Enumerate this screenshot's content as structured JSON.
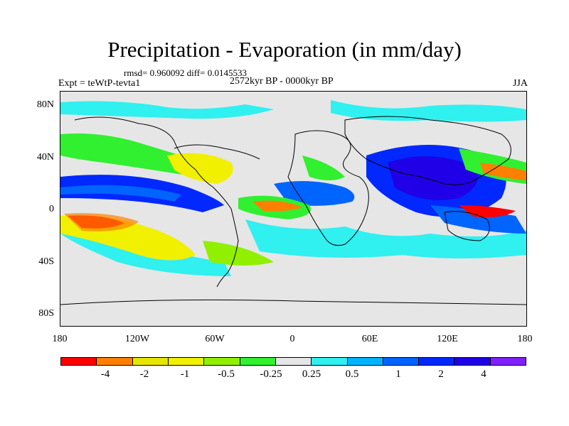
{
  "title": "Precipitation - Evaporation (in mm/day)",
  "stats": "rmsd= 0.960092 diff= 0.0145533",
  "experiment": "Expt = teWtP-tevta1",
  "period": "2572kyr BP - 0000kyr BP",
  "season": "JJA",
  "y_ticks": [
    "80N",
    "40N",
    "0",
    "40S",
    "80S"
  ],
  "x_ticks": [
    "180",
    "120W",
    "60W",
    "0",
    "60E",
    "120E",
    "180"
  ],
  "colorbar": {
    "colors": [
      "#ff0000",
      "#ff8000",
      "#e6e600",
      "#f0f000",
      "#90f000",
      "#30f030",
      "#e6e6e6",
      "#30f0f0",
      "#00b4ff",
      "#0064ff",
      "#0028ff",
      "#2000e6",
      "#8020ff"
    ],
    "labels": [
      "-4",
      "-2",
      "-1",
      "-0.5",
      "-0.25",
      "0.25",
      "0.5",
      "1",
      "2",
      "4"
    ]
  },
  "map": {
    "lon_range": [
      -180,
      180
    ],
    "lat_range": [
      -90,
      90
    ],
    "background_color": "#e6e6e6"
  }
}
